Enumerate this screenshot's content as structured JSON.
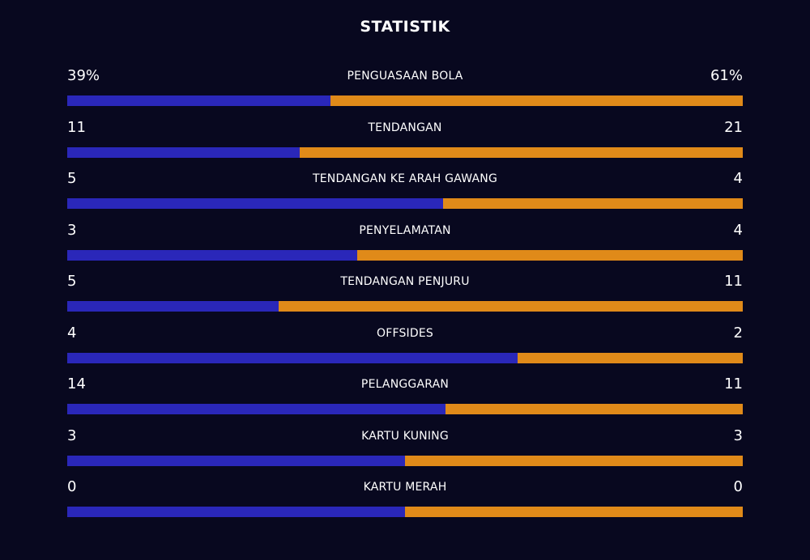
{
  "title": "STATISTIK",
  "colors": {
    "home": "#2a27b9",
    "away": "#e08a19",
    "background": "#08081f"
  },
  "stats": [
    {
      "label": "PENGUASAAN BOLA",
      "left": "39%",
      "right": "61%",
      "home_share": 0.39
    },
    {
      "label": "TENDANGAN",
      "left": "11",
      "right": "21",
      "home_share": 0.344
    },
    {
      "label": "TENDANGAN KE ARAH GAWANG",
      "left": "5",
      "right": "4",
      "home_share": 0.556
    },
    {
      "label": "PENYELAMATAN",
      "left": "3",
      "right": "4",
      "home_share": 0.429
    },
    {
      "label": "TENDANGAN PENJURU",
      "left": "5",
      "right": "11",
      "home_share": 0.3125
    },
    {
      "label": "OFFSIDES",
      "left": "4",
      "right": "2",
      "home_share": 0.667
    },
    {
      "label": "PELANGGARAN",
      "left": "14",
      "right": "11",
      "home_share": 0.56
    },
    {
      "label": "KARTU KUNING",
      "left": "3",
      "right": "3",
      "home_share": 0.5
    },
    {
      "label": "KARTU MERAH",
      "left": "0",
      "right": "0",
      "home_share": 0.5
    }
  ]
}
